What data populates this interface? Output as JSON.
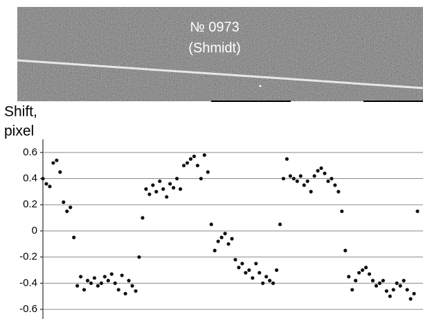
{
  "chart_data": {
    "type": "scatter",
    "image_caption": [
      "№ 0973",
      "(Shmidt)"
    ],
    "ylabel": [
      "Shift,",
      "pixel"
    ],
    "xlim": [
      0,
      549
    ],
    "ylim": [
      -0.65,
      0.7
    ],
    "yticks": [
      0.6,
      0.4,
      0.2,
      0,
      -0.2,
      -0.4,
      -0.6
    ],
    "grid": true,
    "color": "#111111",
    "x": [
      0,
      5,
      10,
      15,
      20,
      25,
      30,
      35,
      40,
      45,
      50,
      55,
      60,
      65,
      70,
      75,
      80,
      85,
      90,
      95,
      100,
      105,
      110,
      115,
      120,
      125,
      130,
      135,
      140,
      145,
      150,
      155,
      160,
      165,
      170,
      175,
      180,
      185,
      190,
      195,
      200,
      205,
      210,
      215,
      220,
      225,
      230,
      235,
      240,
      245,
      250,
      255,
      260,
      265,
      270,
      275,
      280,
      285,
      290,
      295,
      300,
      305,
      310,
      315,
      320,
      325,
      330,
      335,
      340,
      345,
      350,
      355,
      360,
      365,
      370,
      375,
      380,
      385,
      390,
      395,
      400,
      405,
      410,
      415,
      420,
      425,
      430,
      435,
      440,
      445,
      450,
      455,
      460,
      465,
      470,
      475,
      480,
      485,
      490,
      495,
      500,
      505,
      510,
      515,
      520,
      525,
      530,
      535,
      540,
      545
    ],
    "values": [
      0.4,
      0.36,
      0.34,
      0.52,
      0.54,
      0.45,
      0.22,
      0.15,
      0.18,
      -0.05,
      -0.42,
      -0.35,
      -0.45,
      -0.38,
      -0.4,
      -0.36,
      -0.42,
      -0.4,
      -0.35,
      -0.38,
      -0.33,
      -0.4,
      -0.45,
      -0.34,
      -0.48,
      -0.38,
      -0.42,
      -0.46,
      -0.2,
      0.1,
      0.32,
      0.28,
      0.35,
      0.3,
      0.38,
      0.32,
      0.26,
      0.36,
      0.33,
      0.4,
      0.32,
      0.5,
      0.52,
      0.55,
      0.57,
      0.5,
      0.4,
      0.58,
      0.45,
      0.05,
      -0.15,
      -0.08,
      -0.05,
      -0.02,
      -0.1,
      -0.06,
      -0.22,
      -0.28,
      -0.25,
      -0.32,
      -0.3,
      -0.36,
      -0.25,
      -0.32,
      -0.4,
      -0.35,
      -0.38,
      -0.4,
      -0.3,
      0.05,
      0.4,
      0.55,
      0.42,
      0.4,
      0.38,
      0.42,
      0.35,
      0.38,
      0.3,
      0.42,
      0.46,
      0.48,
      0.44,
      0.38,
      0.4,
      0.35,
      0.3,
      0.15,
      -0.15,
      -0.35,
      -0.45,
      -0.38,
      -0.32,
      -0.3,
      -0.28,
      -0.33,
      -0.38,
      -0.42,
      -0.4,
      -0.38,
      -0.46,
      -0.5,
      -0.45,
      -0.4,
      -0.42,
      -0.38,
      -0.45,
      -0.52,
      -0.48,
      0.15
    ]
  }
}
